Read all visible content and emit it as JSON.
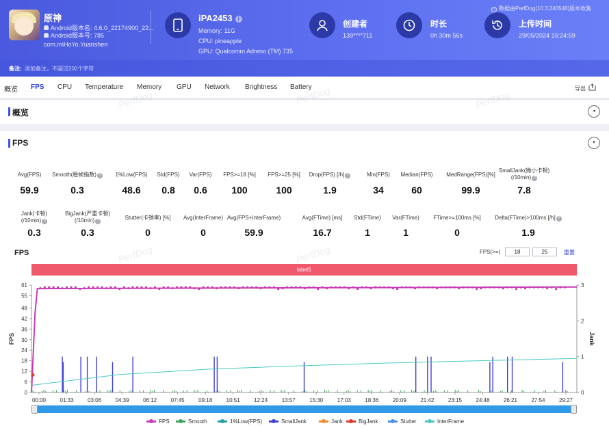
{
  "header": {
    "app_name": "原神",
    "app_version_name": "Android版本名: 4.6.0_22174900_22...",
    "app_version_code": "Android版本号: 785",
    "package": "com.miHoYo.Yuanshen",
    "device": {
      "name": "iPA2453",
      "info": "i",
      "memory": "Memory: 11G",
      "cpu": "CPU: pineapple",
      "gpu": "GPU: Qualcomm Adreno (TM) 735"
    },
    "creator": {
      "title": "创建者",
      "value": "139****711"
    },
    "duration": {
      "title": "时长",
      "value": "0h 30m 56s"
    },
    "upload": {
      "title": "上传时间",
      "value": "29/05/2024 15:24:59"
    },
    "collect_note": "数据由PerfDog(10.3.240548)版本收集",
    "note_label": "备注:",
    "note_placeholder": "添加备注，不超过200个字符"
  },
  "tabs": [
    "概览",
    "FPS",
    "CPU",
    "Temperature",
    "Memory",
    "GPU",
    "Network",
    "Brightness",
    "Battery"
  ],
  "active_tab": "FPS",
  "export_label": "导出",
  "watermark": "PerfDog",
  "overview": {
    "title": "概览",
    "toggle": "◂"
  },
  "fps_section": {
    "title": "FPS",
    "toggle": "▾"
  },
  "metrics_row1": [
    {
      "label": "Avg(FPS)",
      "value": "59.9",
      "help": false
    },
    {
      "label": "Smooth(稳帧指数)",
      "value": "0.3",
      "help": true
    },
    {
      "label": "1%Low(FPS)",
      "value": "48.6",
      "help": false
    },
    {
      "label": "Std(FPS)",
      "value": "0.8",
      "help": false
    },
    {
      "label": "Var(FPS)",
      "value": "0.6",
      "help": false
    },
    {
      "label": "FPS>=18 [%]",
      "value": "100",
      "help": false
    },
    {
      "label": "FPS>=25 [%]",
      "value": "100",
      "help": false
    },
    {
      "label": "Drop(FPS) [/h]",
      "value": "1.9",
      "help": true
    },
    {
      "label": "Min(FPS)",
      "value": "34",
      "help": false
    },
    {
      "label": "Median(FPS)",
      "value": "60",
      "help": false
    },
    {
      "label": "MedRange(FPS)[%]",
      "value": "99.9",
      "help": false
    },
    {
      "label": "SmallJank(微小卡顿)",
      "label2": "(/10min)",
      "value": "7.8",
      "help": true
    }
  ],
  "metrics_row2": [
    {
      "label": "Jank(卡顿)",
      "label2": "(/10min)",
      "value": "0.3",
      "help": true
    },
    {
      "label": "BigJank(严重卡顿)",
      "label2": "(/10min)",
      "value": "0.3",
      "help": true
    },
    {
      "label": "Stutter(卡顿率) [%]",
      "value": "0",
      "help": false
    },
    {
      "label": "Avg(InterFrame)",
      "value": "0",
      "help": false
    },
    {
      "label": "Avg(FPS+InterFrame)",
      "value": "59.9",
      "help": false
    },
    {
      "label": "Avg(FTime) [ms]",
      "value": "16.7",
      "help": false
    },
    {
      "label": "Std(FTime)",
      "value": "1",
      "help": false
    },
    {
      "label": "Var(FTime)",
      "value": "1",
      "help": false
    },
    {
      "label": "FTime>=100ms [%]",
      "value": "0",
      "help": false
    },
    {
      "label": "Delta(FTime)>100ms [/h]",
      "value": "1.9",
      "help": true
    }
  ],
  "chart_controls": {
    "title": "FPS",
    "gate_label": "FPS(>=)",
    "gate1": "18",
    "gate2": "25",
    "reset": "重置",
    "marker_label": "label1"
  },
  "chart_data": {
    "type": "line",
    "xlabel": "",
    "ylabel": "FPS",
    "y2label": "Jank",
    "ylim": [
      0,
      61
    ],
    "y2lim": [
      0,
      3
    ],
    "yticks": [
      0,
      6,
      12,
      18,
      24,
      30,
      36,
      42,
      48,
      55,
      61
    ],
    "y2ticks": [
      0,
      1,
      2,
      3
    ],
    "xticks": [
      "00:00",
      "01:33",
      "03:06",
      "04:39",
      "06:12",
      "07:45",
      "09:18",
      "10:51",
      "12:24",
      "13:57",
      "15:30",
      "17:03",
      "18:36",
      "20:09",
      "21:42",
      "23:15",
      "24:48",
      "26:21",
      "27:54",
      "29:27"
    ],
    "duration_s": 1856,
    "series": [
      {
        "name": "FPS",
        "color": "#c93bb4",
        "baseline": 59.9,
        "start": [
          [
            0,
            0
          ],
          [
            5,
            18
          ],
          [
            12,
            45
          ],
          [
            20,
            59
          ]
        ]
      },
      {
        "name": "Smooth",
        "color": "#3aa655"
      },
      {
        "name": "1%Low(FPS)",
        "color": "#20a0a0"
      },
      {
        "name": "SmallJank",
        "color": "#3f3fd6",
        "events_s": [
          105,
          108,
          168,
          190,
          222,
          276,
          345,
          622,
          632,
          928,
          1308,
          1348,
          1360,
          1560,
          1570,
          1620,
          1636,
          1808
        ]
      },
      {
        "name": "Jank",
        "color": "#f08a2a"
      },
      {
        "name": "BigJank",
        "color": "#e2382f"
      },
      {
        "name": "Stutter",
        "color": "#4a90e2"
      },
      {
        "name": "InterFrame",
        "color": "#48c9c4",
        "curve": [
          [
            0,
            0.2
          ],
          [
            300,
            0.5
          ],
          [
            600,
            0.65
          ],
          [
            900,
            0.74
          ],
          [
            1200,
            0.82
          ],
          [
            1500,
            0.88
          ],
          [
            1856,
            0.95
          ]
        ]
      }
    ],
    "grid": false,
    "legend": "bottom"
  }
}
